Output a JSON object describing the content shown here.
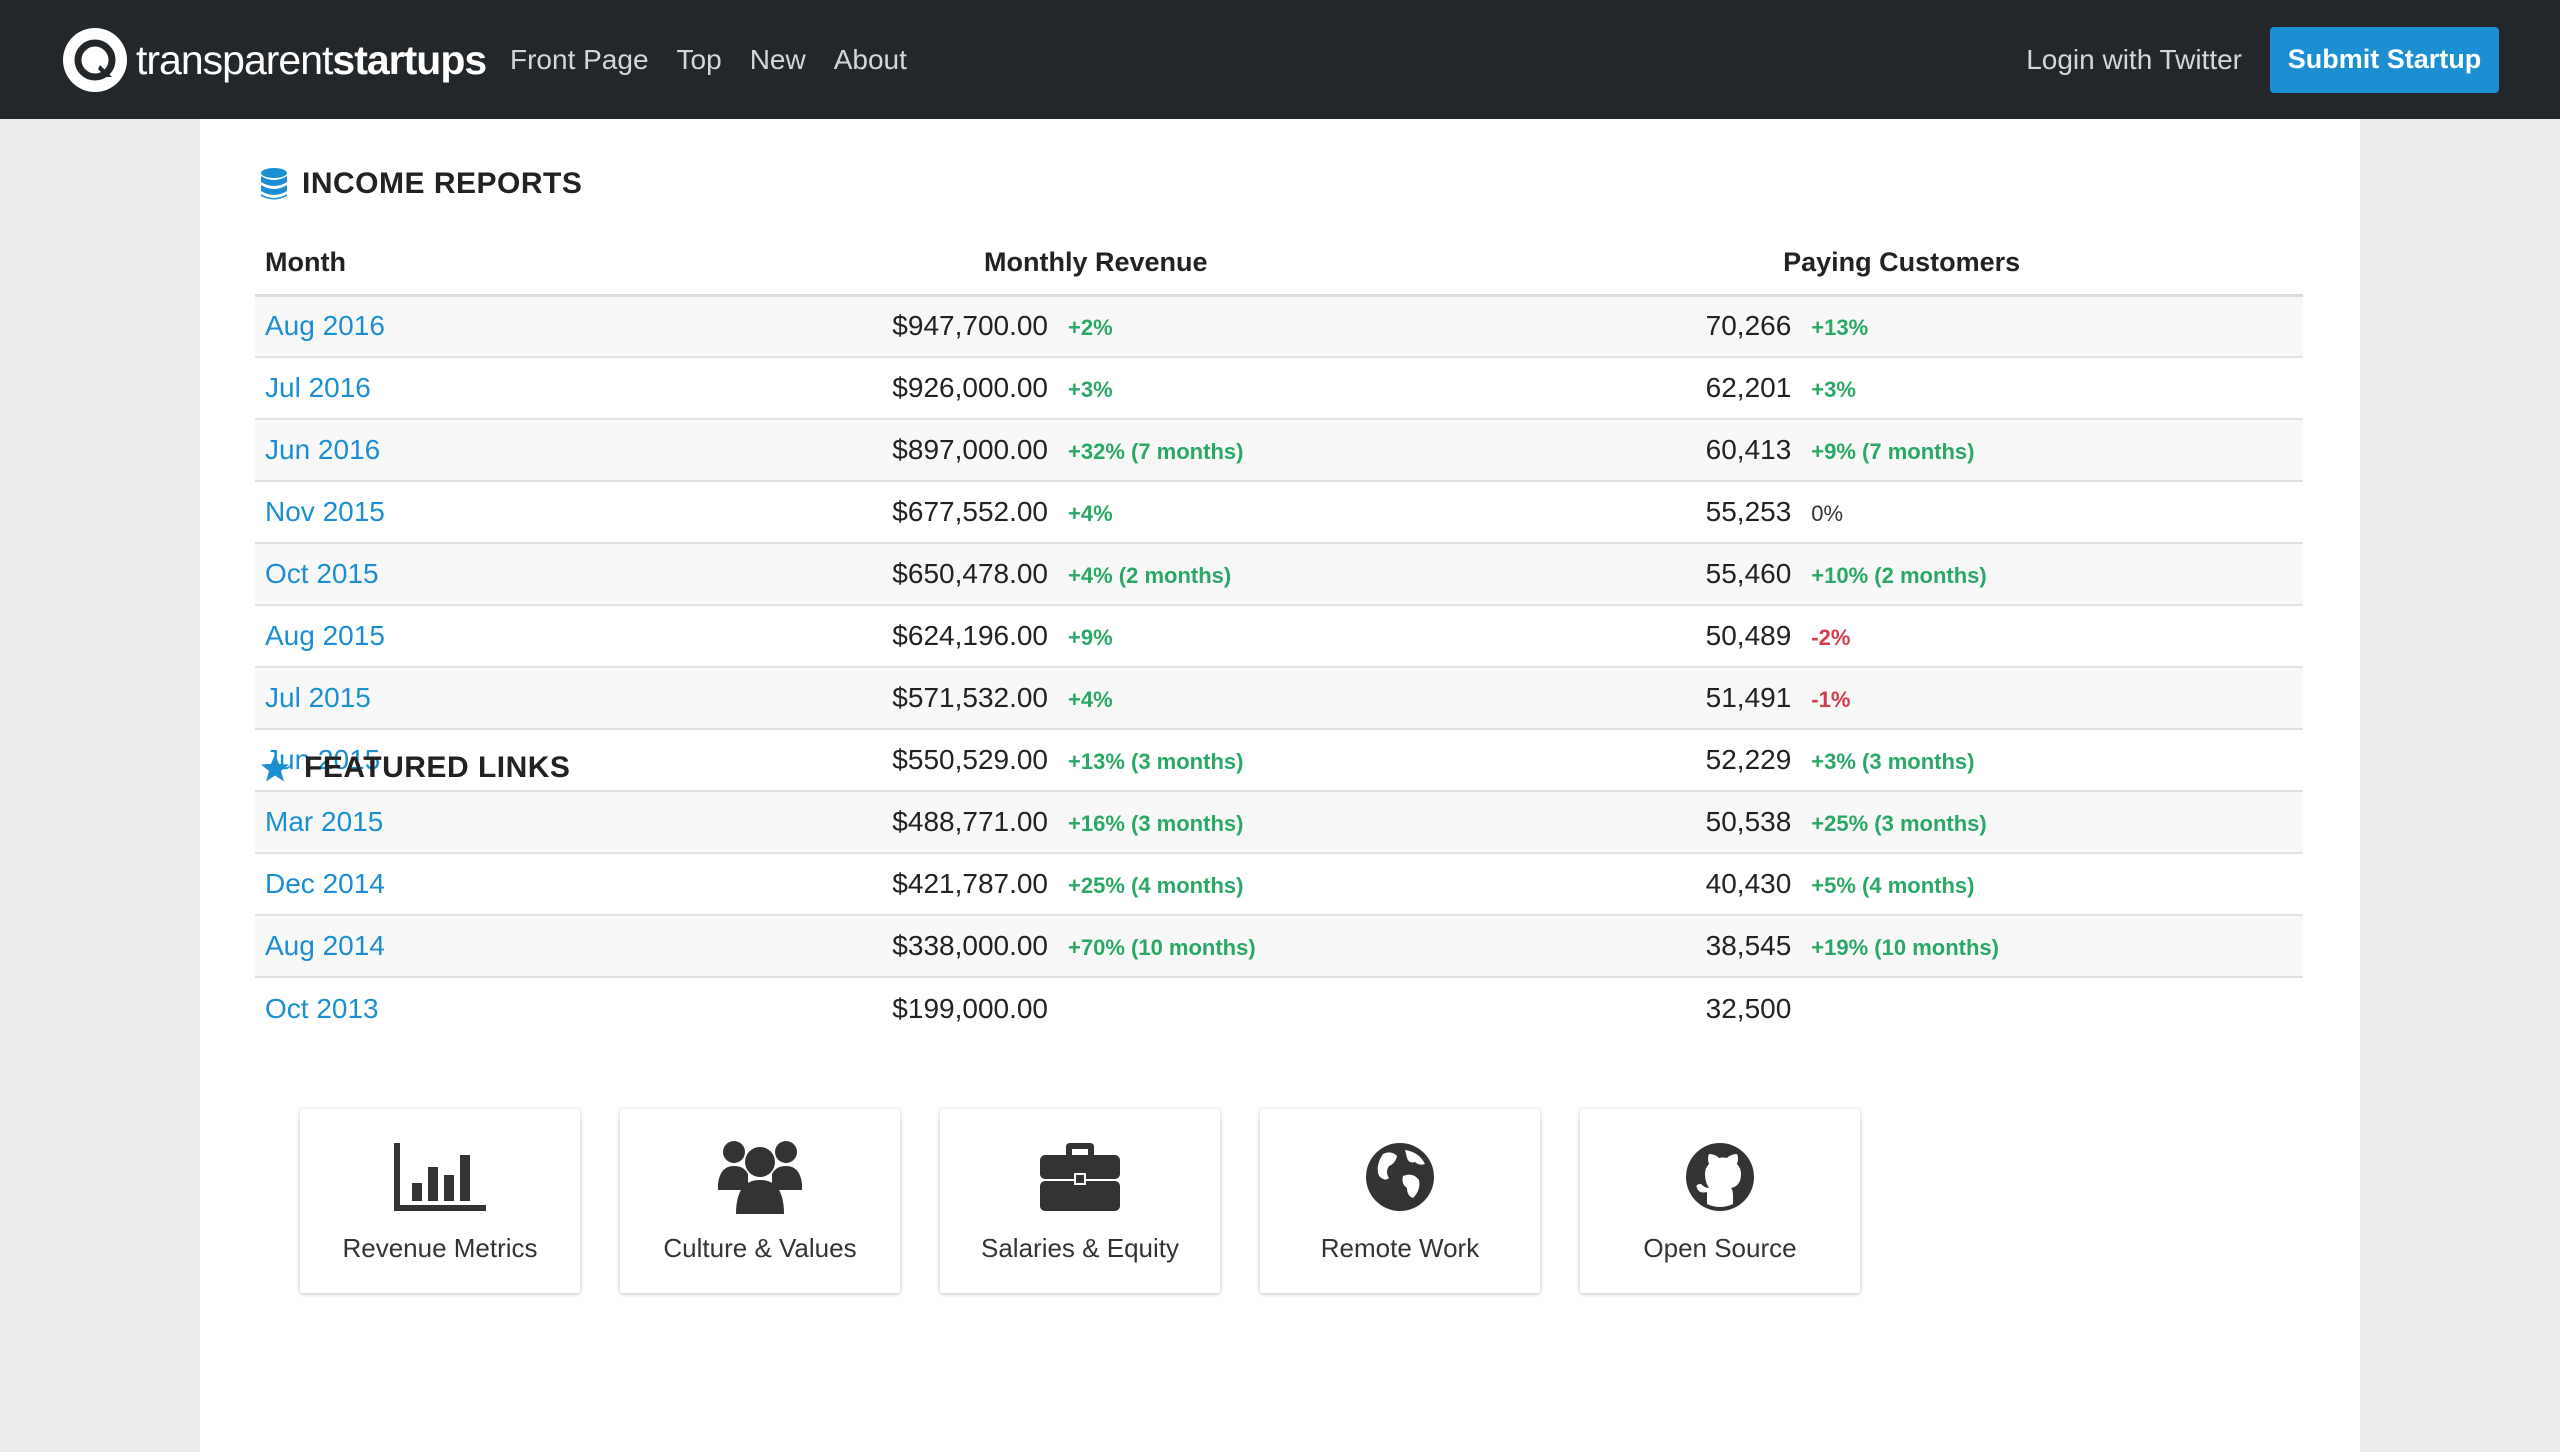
{
  "navbar": {
    "brand_light": "transparent",
    "brand_bold": "startups",
    "links": [
      "Front Page",
      "Top",
      "New",
      "About"
    ],
    "login": "Login with Twitter",
    "submit": "Submit Startup"
  },
  "income": {
    "title": "INCOME REPORTS",
    "headers": {
      "month": "Month",
      "revenue": "Monthly Revenue",
      "customers": "Paying Customers"
    },
    "rows": [
      {
        "month": "Aug 2016",
        "revenue": "$947,700.00",
        "rev_change": "+2%",
        "rev_dir": "pos",
        "customers": "70,266",
        "cust_change": "+13%",
        "cust_dir": "pos"
      },
      {
        "month": "Jul 2016",
        "revenue": "$926,000.00",
        "rev_change": "+3%",
        "rev_dir": "pos",
        "customers": "62,201",
        "cust_change": "+3%",
        "cust_dir": "pos"
      },
      {
        "month": "Jun 2016",
        "revenue": "$897,000.00",
        "rev_change": "+32% (7 months)",
        "rev_dir": "pos",
        "customers": "60,413",
        "cust_change": "+9% (7 months)",
        "cust_dir": "pos"
      },
      {
        "month": "Nov 2015",
        "revenue": "$677,552.00",
        "rev_change": "+4%",
        "rev_dir": "pos",
        "customers": "55,253",
        "cust_change": "0%",
        "cust_dir": "zero"
      },
      {
        "month": "Oct 2015",
        "revenue": "$650,478.00",
        "rev_change": "+4% (2 months)",
        "rev_dir": "pos",
        "customers": "55,460",
        "cust_change": "+10% (2 months)",
        "cust_dir": "pos"
      },
      {
        "month": "Aug 2015",
        "revenue": "$624,196.00",
        "rev_change": "+9%",
        "rev_dir": "pos",
        "customers": "50,489",
        "cust_change": "-2%",
        "cust_dir": "neg"
      },
      {
        "month": "Jul 2015",
        "revenue": "$571,532.00",
        "rev_change": "+4%",
        "rev_dir": "pos",
        "customers": "51,491",
        "cust_change": "-1%",
        "cust_dir": "neg"
      },
      {
        "month": "Jun 2015",
        "revenue": "$550,529.00",
        "rev_change": "+13% (3 months)",
        "rev_dir": "pos",
        "customers": "52,229",
        "cust_change": "+3% (3 months)",
        "cust_dir": "pos"
      },
      {
        "month": "Mar 2015",
        "revenue": "$488,771.00",
        "rev_change": "+16% (3 months)",
        "rev_dir": "pos",
        "customers": "50,538",
        "cust_change": "+25% (3 months)",
        "cust_dir": "pos"
      },
      {
        "month": "Dec 2014",
        "revenue": "$421,787.00",
        "rev_change": "+25% (4 months)",
        "rev_dir": "pos",
        "customers": "40,430",
        "cust_change": "+5% (4 months)",
        "cust_dir": "pos"
      },
      {
        "month": "Aug 2014",
        "revenue": "$338,000.00",
        "rev_change": "+70% (10 months)",
        "rev_dir": "pos",
        "customers": "38,545",
        "cust_change": "+19% (10 months)",
        "cust_dir": "pos"
      },
      {
        "month": "Oct 2013",
        "revenue": "$199,000.00",
        "rev_change": "",
        "rev_dir": "pos",
        "customers": "32,500",
        "cust_change": "",
        "cust_dir": "pos"
      }
    ]
  },
  "featured": {
    "title": "FEATURED LINKS",
    "cards": [
      {
        "label": "Revenue Metrics",
        "icon": "bar-chart-icon"
      },
      {
        "label": "Culture & Values",
        "icon": "users-icon"
      },
      {
        "label": "Salaries & Equity",
        "icon": "briefcase-icon"
      },
      {
        "label": "Remote Work",
        "icon": "globe-icon"
      },
      {
        "label": "Open Source",
        "icon": "github-icon"
      }
    ]
  },
  "colors": {
    "navbar_bg": "#23272a",
    "accent": "#1b8fd1",
    "positive": "#2aa866",
    "negative": "#d23c4b"
  }
}
